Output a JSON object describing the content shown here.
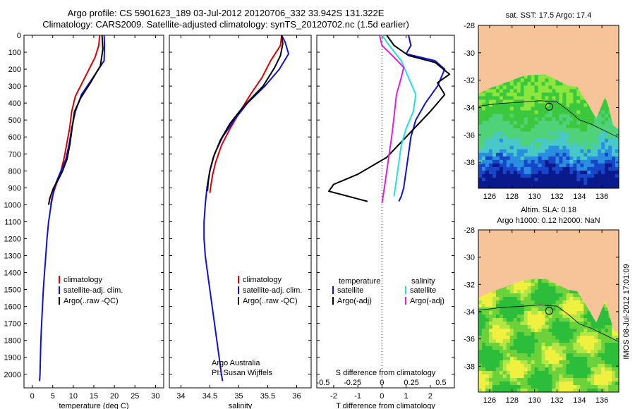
{
  "titles": {
    "line1": "Argo profile: CS 5901623_189 03-Jul-2012 20120706_332 33.942S 131.322E",
    "line2": "Climatology: CARS2009. Satellite-adjusted climatology: synTS_20120702.nc (1.5d earlier)"
  },
  "footer_stamp": "IMOS 08-Jul-2012 17:01:09",
  "colors": {
    "climatology": "#dd0000",
    "satellite": "#1010d8",
    "argo": "#000000",
    "sal_satellite": "#22e0e0",
    "sal_argo": "#e020e0",
    "land": "#f7c49a"
  },
  "chart_data": [
    {
      "type": "line",
      "name": "temperature-profile",
      "xlabel": "temperature (deg C)",
      "ylabel": "",
      "xlim": [
        -2,
        32
      ],
      "ylim": [
        0,
        2080
      ],
      "y_inverted": true,
      "xticks": [
        0,
        5,
        10,
        15,
        20,
        25,
        30
      ],
      "yticks": [
        0,
        100,
        200,
        300,
        400,
        500,
        600,
        700,
        800,
        900,
        1000,
        1100,
        1200,
        1300,
        1400,
        1500,
        1600,
        1700,
        1800,
        1900,
        2000
      ],
      "legend_position": "lower-middle",
      "legend": [
        "climatology",
        "satellite-adj. clim.",
        "Argo(..raw -QC)"
      ],
      "series": [
        {
          "name": "climatology",
          "color": "#dd0000",
          "x": [
            16.4,
            16.2,
            15.3,
            12.8,
            10.5,
            9.6,
            9.1,
            8.4,
            7.8,
            7.0,
            6.0,
            5.3,
            4.8,
            4.5
          ],
          "y": [
            0,
            60,
            130,
            250,
            360,
            450,
            550,
            640,
            720,
            800,
            870,
            920,
            960,
            1000
          ]
        },
        {
          "name": "satellite-adj. clim.",
          "color": "#1010d8",
          "x": [
            17.5,
            17.6,
            17.5,
            14.8,
            12.0,
            10.5,
            9.6,
            9.0,
            8.2,
            7.0,
            5.8,
            5.2,
            4.9,
            4.6,
            4.3,
            4.0,
            3.6,
            3.3,
            3.0,
            2.7,
            2.5,
            2.3,
            2.1,
            2.0,
            1.9,
            1.8
          ],
          "y": [
            0,
            60,
            150,
            250,
            350,
            450,
            550,
            640,
            730,
            800,
            870,
            920,
            960,
            1000,
            1050,
            1100,
            1200,
            1300,
            1400,
            1500,
            1600,
            1700,
            1800,
            1900,
            2000,
            2040
          ]
        },
        {
          "name": "Argo(..raw -QC)",
          "color": "#000000",
          "x": [
            17.0,
            17.2,
            16.6,
            14.2,
            11.8,
            10.3,
            9.7,
            9.2,
            8.5,
            7.4,
            6.4,
            5.2,
            4.3,
            4.0
          ],
          "y": [
            0,
            80,
            180,
            280,
            370,
            450,
            550,
            640,
            730,
            800,
            850,
            900,
            960,
            1000
          ]
        }
      ]
    },
    {
      "type": "line",
      "name": "salinity-profile",
      "xlabel": "salinity",
      "ylabel": "",
      "xlim": [
        33.8,
        36.25
      ],
      "ylim": [
        0,
        2080
      ],
      "y_inverted": true,
      "xticks": [
        34,
        34.5,
        35,
        35.5,
        36
      ],
      "legend_position": "lower-middle",
      "legend": [
        "climatology",
        "satellite-adj. clim.",
        "Argo(..raw -QC)"
      ],
      "annotations": [
        "Argo Australia",
        "PI: Susan Wijffels"
      ],
      "series": [
        {
          "name": "climatology",
          "color": "#dd0000",
          "x": [
            35.74,
            35.72,
            35.55,
            35.4,
            35.2,
            35.02,
            34.85,
            34.7,
            34.6,
            34.55,
            34.52,
            34.5
          ],
          "y": [
            0,
            60,
            150,
            250,
            350,
            450,
            550,
            650,
            750,
            820,
            880,
            930
          ]
        },
        {
          "name": "satellite-adj. clim.",
          "color": "#1010d8",
          "x": [
            35.74,
            35.8,
            35.86,
            35.7,
            35.45,
            35.15,
            34.92,
            34.72,
            34.58,
            34.5,
            34.45,
            34.42,
            34.4,
            34.4,
            34.42,
            34.46,
            34.5,
            34.54,
            34.58,
            34.62,
            34.66,
            34.7,
            34.72
          ],
          "y": [
            0,
            40,
            110,
            200,
            300,
            400,
            500,
            600,
            700,
            800,
            900,
            1000,
            1100,
            1200,
            1300,
            1400,
            1500,
            1600,
            1700,
            1800,
            1900,
            2000,
            2040
          ]
        },
        {
          "name": "Argo(..raw -QC)",
          "color": "#000000",
          "x": [
            35.74,
            35.76,
            35.72,
            35.62,
            35.42,
            35.08,
            34.85,
            34.68,
            34.56,
            34.5,
            34.47,
            34.46
          ],
          "y": [
            0,
            50,
            120,
            190,
            300,
            420,
            520,
            620,
            720,
            800,
            870,
            920
          ]
        }
      ]
    },
    {
      "type": "line",
      "name": "difference-profile",
      "xlabel": "T difference from climatology",
      "x2label": "S difference from climatology",
      "xlim": [
        -2.7,
        3.0
      ],
      "ylim": [
        0,
        2080
      ],
      "y_inverted": true,
      "xticks": [
        -2,
        -1,
        0,
        1,
        2
      ],
      "x2ticks": [
        "-0.5",
        "-0.25",
        "0",
        "0.25",
        "0.5"
      ],
      "legend_position": "lower-middle",
      "legend_headers": [
        "temperature",
        "salinity"
      ],
      "legend": [
        "satellite",
        "Argo(-adj)",
        "satellite",
        "Argo(-adj)"
      ],
      "series": [
        {
          "name": "T satellite",
          "color": "#1010d8",
          "x": [
            1.1,
            1.2,
            1.0,
            2.2,
            2.6,
            2.3,
            1.8,
            1.4,
            1.2,
            1.1,
            1.0,
            0.9,
            0.8,
            0.7
          ],
          "y": [
            0,
            60,
            110,
            150,
            200,
            300,
            400,
            500,
            600,
            700,
            800,
            900,
            950,
            980
          ]
        },
        {
          "name": "T Argo(-adj)",
          "color": "#000000",
          "x": [
            0.2,
            0.5,
            1.1,
            2.2,
            2.8,
            2.3,
            2.6,
            2.0,
            1.2,
            0.2,
            -1.0,
            -2.0,
            -2.2,
            -1.4,
            -0.6
          ],
          "y": [
            0,
            60,
            120,
            160,
            230,
            280,
            350,
            450,
            570,
            720,
            820,
            880,
            920,
            950,
            980
          ]
        },
        {
          "name": "S satellite",
          "color": "#22e0e0",
          "x": [
            0.0,
            0.3,
            0.8,
            1.1,
            1.4,
            1.3,
            1.0,
            0.8,
            0.7,
            0.6,
            0.5
          ],
          "y": [
            0,
            60,
            150,
            250,
            350,
            450,
            550,
            650,
            750,
            850,
            950
          ]
        },
        {
          "name": "S Argo(-adj)",
          "color": "#e020e0",
          "x": [
            -0.1,
            0.0,
            0.5,
            0.9,
            0.8,
            0.6,
            0.5,
            0.4,
            0.3,
            0.2,
            0.1,
            0.0
          ],
          "y": [
            0,
            60,
            130,
            190,
            250,
            350,
            480,
            600,
            700,
            800,
            900,
            990
          ]
        }
      ]
    },
    {
      "type": "heatmap",
      "name": "sst-map",
      "title": "sat. SST: 17.5 Argo: 17.4",
      "xlim": [
        125,
        137.5
      ],
      "ylim": [
        -39.9,
        -28
      ],
      "xticks": [
        126,
        128,
        130,
        132,
        134,
        136
      ],
      "yticks": [
        -28,
        -30,
        -32,
        -34,
        -36,
        -38
      ],
      "marker": {
        "lon": 131.3,
        "lat": -33.94
      }
    },
    {
      "type": "heatmap",
      "name": "sla-map",
      "title": "Altim. SLA: 0.18",
      "subtitle": "Argo h1000: 0.12 h2000: NaN",
      "xlim": [
        125,
        137.5
      ],
      "ylim": [
        -39.9,
        -28
      ],
      "xticks": [
        126,
        128,
        130,
        132,
        134,
        136
      ],
      "yticks": [
        -28,
        -30,
        -32,
        -34,
        -36,
        -38
      ],
      "marker": {
        "lon": 131.3,
        "lat": -33.94
      }
    }
  ]
}
